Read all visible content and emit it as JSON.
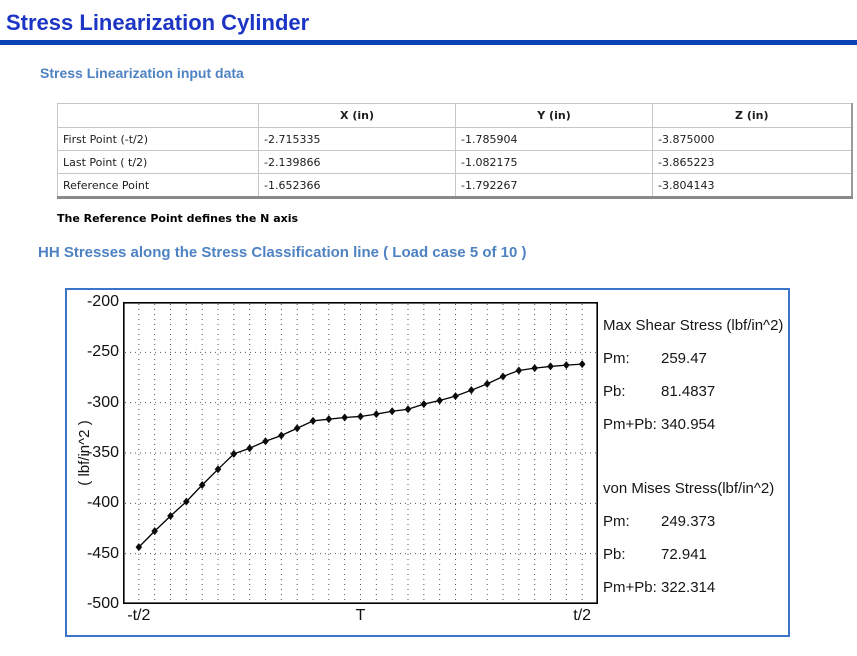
{
  "page": {
    "title": "Stress Linearization Cylinder"
  },
  "colors": {
    "title_blue": "#1d35c4",
    "rule_blue": "#0a41b4",
    "heading_blue": "#4e82c3",
    "chart_border_blue": "#3c74c8"
  },
  "input_section": {
    "heading": "Stress Linearization input data",
    "table": {
      "columns": [
        "",
        "X (in)",
        "Y (in)",
        "Z (in)"
      ],
      "rows": [
        [
          "First Point (-t/2)",
          "-2.715335",
          "-1.785904",
          "-3.875000"
        ],
        [
          "Last Point ( t/2)",
          "-2.139866",
          "-1.082175",
          "-3.865223"
        ],
        [
          "Reference Point",
          "-1.652366",
          "-1.792267",
          "-3.804143"
        ]
      ]
    },
    "note": "The Reference Point defines the N axis"
  },
  "chart_section": {
    "heading": "HH Stresses along the Stress Classification line ( Load case 5 of 10 )",
    "stats": {
      "max_shear": {
        "title": "Max Shear Stress (lbf/in^2)",
        "rows": [
          [
            "Pm:",
            "259.47"
          ],
          [
            "Pb:",
            "81.4837"
          ],
          [
            "Pm+Pb:",
            "340.954"
          ]
        ]
      },
      "von_mises": {
        "title": "von Mises Stress(lbf/in^2)",
        "rows": [
          [
            "Pm:",
            "249.373"
          ],
          [
            "Pb:",
            "72.941"
          ],
          [
            "Pm+Pb:",
            "322.314"
          ]
        ]
      }
    }
  },
  "chart_data": {
    "type": "line",
    "title": "",
    "xlabel": "",
    "ylabel": "( lbf/in^2 )",
    "ylim": [
      -500,
      -200
    ],
    "yticks": [
      -200,
      -250,
      -300,
      -350,
      -400,
      -450,
      -500
    ],
    "xticks": [
      {
        "pos": 0,
        "label": "-t/2"
      },
      {
        "pos": 14,
        "label": "T"
      },
      {
        "pos": 28,
        "label": "t/2"
      }
    ],
    "grid": "dotted",
    "legend_position": "none",
    "marker": "diamond",
    "line_color": "#000000",
    "series": [
      {
        "name": "HH stress along classification line",
        "values": [
          -443.5,
          -427.6,
          -412.6,
          -398.3,
          -381.8,
          -366.2,
          -350.9,
          -345.3,
          -338.3,
          -332.6,
          -325.4,
          -318.1,
          -316.4,
          -314.7,
          -313.7,
          -311.4,
          -308.5,
          -306.5,
          -301.5,
          -297.8,
          -293.5,
          -287.6,
          -281.3,
          -274.0,
          -268.0,
          -265.7,
          -264.0,
          -262.7,
          -261.7
        ]
      }
    ]
  }
}
